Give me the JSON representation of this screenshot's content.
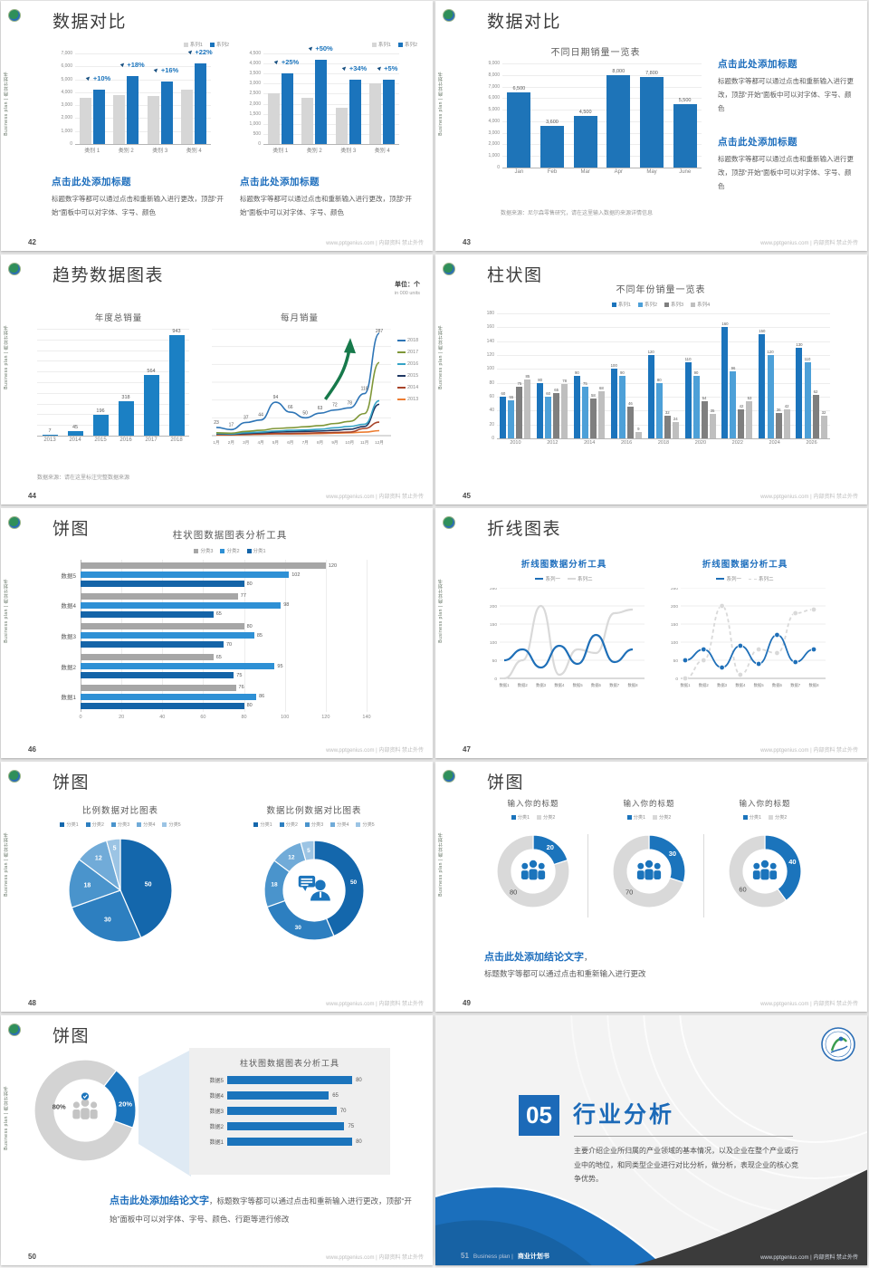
{
  "page": {
    "sidebar": "Business plan | 商业计划书",
    "site": "www.pptgenius.com | 内部资料 禁止外传"
  },
  "slides": [
    {
      "number": "42",
      "title": "数据对比",
      "blocks": [
        {
          "heading": "点击此处添加标题",
          "body": "标题数字等都可以通过点击和重新输入进行更改，顶部“开始”面板中可以对字体、字号、颜色"
        },
        {
          "heading": "点击此处添加标题",
          "body": "标题数字等都可以通过点击和重新输入进行更改，顶部“开始”面板中可以对字体、字号、颜色"
        }
      ],
      "charts": [
        {
          "type": "bar",
          "legend": [
            {
              "label": "系列1",
              "color": "#d6d6d6"
            },
            {
              "label": "系列2",
              "color": "#1b74bc"
            }
          ],
          "categories": [
            "类别 1",
            "类别 2",
            "类别 3",
            "类别 4"
          ],
          "series": [
            {
              "name": "系列1",
              "color": "#d6d6d6",
              "values": [
                3600,
                3800,
                3700,
                4200
              ]
            },
            {
              "name": "系列2",
              "color": "#1b74bc",
              "values": [
                4200,
                5250,
                4800,
                6200
              ]
            }
          ],
          "pct": [
            "+10%",
            "+18%",
            "+16%",
            "+22%"
          ],
          "ylim": [
            0,
            7000
          ],
          "ystep": 1000,
          "yLabels": true,
          "yFmt": true
        },
        {
          "type": "bar",
          "legend": [
            {
              "label": "系列1",
              "color": "#d6d6d6"
            },
            {
              "label": "系列2",
              "color": "#1b74bc"
            }
          ],
          "categories": [
            "类别 1",
            "类别 2",
            "类别 3",
            "类别 4"
          ],
          "series": [
            {
              "name": "系列1",
              "color": "#d6d6d6",
              "values": [
                2500,
                2300,
                1800,
                3000
              ]
            },
            {
              "name": "系列2",
              "color": "#1b74bc",
              "values": [
                3500,
                4200,
                3200,
                3200
              ]
            }
          ],
          "pct": [
            "+25%",
            "+50%",
            "+34%",
            "+5%"
          ],
          "ylim": [
            0,
            4500
          ],
          "ystep": 500,
          "yLabels": true,
          "yFmt": true
        }
      ]
    },
    {
      "number": "43",
      "title": "数据对比",
      "chart": {
        "type": "bar",
        "title": "不同日期销量一览表",
        "categories": [
          "Jan",
          "Feb",
          "Mar",
          "Apr",
          "May",
          "June"
        ],
        "series": [
          {
            "name": "销量",
            "color": "#1e74b8",
            "values": [
              6500,
              3600,
              4500,
              8000,
              7800,
              5500
            ]
          }
        ],
        "ylim": [
          0,
          9000
        ],
        "ystep": 1000,
        "yLabels": true,
        "yFmt": true
      },
      "note": "数据来源：尼尔森零售研究，请在这里输入数据的来源详情信息",
      "blocks": [
        {
          "heading": "点击此处添加标题",
          "body": "标题数字等都可以通过点击和重新输入进行更改，顶部“开始”面板中可以对字体、字号、颜色"
        },
        {
          "heading": "点击此处添加标题",
          "body": "标题数字等都可以通过点击和重新输入进行更改，顶部“开始”面板中可以对字体、字号、颜色"
        }
      ]
    },
    {
      "number": "44",
      "title": "趋势数据图表",
      "unit_cn": "单位：个",
      "unit_en": "in 000 units",
      "bar": {
        "type": "bar",
        "title": "年度总销量",
        "categories": [
          "2013",
          "2014",
          "2015",
          "2016",
          "2017",
          "2018"
        ],
        "series": [
          {
            "name": "年度总销量",
            "color": "#1b80c4",
            "values": [
              7,
              45,
              196,
              318,
              564,
              943
            ]
          }
        ],
        "ylim": [
          0,
          1000
        ],
        "ystep": 100,
        "yLabels": false
      },
      "line": {
        "type": "line",
        "title": "每月销量",
        "categories": [
          "1月",
          "2月",
          "3月",
          "4月",
          "5月",
          "6月",
          "7月",
          "8月",
          "9月",
          "10月",
          "11月",
          "12月"
        ],
        "series": [
          {
            "name": "2018",
            "color": "#2e75b6",
            "values": [
              23,
              17,
              37,
              44,
              94,
              66,
              50,
              63,
              72,
              78,
              118,
              287
            ],
            "showLabels": true
          },
          {
            "name": "2017",
            "color": "#7f9738",
            "values": [
              8,
              7,
              12,
              15,
              20,
              22,
              25,
              28,
              34,
              40,
              62,
              205
            ]
          },
          {
            "name": "2016",
            "color": "#35a3c6",
            "values": [
              6,
              5,
              8,
              10,
              13,
              15,
              16,
              18,
              22,
              26,
              32,
              98
            ]
          },
          {
            "name": "2015",
            "color": "#1f3864",
            "values": [
              5,
              4,
              6,
              8,
              10,
              11,
              12,
              13,
              15,
              18,
              26,
              88
            ]
          },
          {
            "name": "2014",
            "color": "#a8442a",
            "values": [
              3,
              3,
              4,
              5,
              6,
              6,
              7,
              8,
              9,
              10,
              20,
              38
            ]
          },
          {
            "name": "2013",
            "color": "#ed7d31",
            "values": [
              2,
              2,
              3,
              4,
              5,
              5,
              5,
              6,
              7,
              8,
              10,
              14
            ]
          }
        ],
        "ylim": [
          0,
          300
        ],
        "ystep": 50,
        "yLabels": false
      },
      "legend": [
        {
          "label": "2018",
          "color": "#2e75b6",
          "line": true
        },
        {
          "label": "2017",
          "color": "#7f9738",
          "line": true
        },
        {
          "label": "2016",
          "color": "#35a3c6",
          "line": true
        },
        {
          "label": "2015",
          "color": "#1f3864",
          "line": true
        },
        {
          "label": "2014",
          "color": "#a8442a",
          "line": true
        },
        {
          "label": "2013",
          "color": "#ed7d31",
          "line": true
        }
      ],
      "note": "数据来源：请在这里标注完整数据来源"
    },
    {
      "number": "45",
      "title": "柱状图",
      "chart": {
        "type": "bar",
        "title": "不同年份销量一览表",
        "legend": [
          {
            "label": "系列1",
            "color": "#1b74bc"
          },
          {
            "label": "系列2",
            "color": "#4da0d8"
          },
          {
            "label": "系列3",
            "color": "#7f7f7f"
          },
          {
            "label": "系列4",
            "color": "#bfbfbf"
          }
        ],
        "categories": [
          "2010",
          "2012",
          "2014",
          "2016",
          "2018",
          "2020",
          "2022",
          "2024",
          "2026"
        ],
        "series": [
          {
            "name": "系列1",
            "color": "#1b74bc",
            "values": [
              60,
              80,
              90,
              100,
              120,
              110,
              160,
              150,
              130
            ]
          },
          {
            "name": "系列2",
            "color": "#4da0d8",
            "values": [
              55,
              60,
              75,
              90,
              80,
              90,
              96,
              120,
              110
            ]
          },
          {
            "name": "系列3",
            "color": "#7f7f7f",
            "values": [
              75,
              65,
              58,
              46,
              32,
              54,
              42,
              36,
              62
            ]
          },
          {
            "name": "系列4",
            "color": "#bfbfbf",
            "values": [
              85,
              78,
              68,
              9,
              24,
              35,
              53,
              42,
              32
            ]
          }
        ],
        "ylim": [
          0,
          180
        ],
        "ystep": 20,
        "yLabels": true
      }
    },
    {
      "number": "46",
      "title": "饼图",
      "chart": {
        "type": "hbar",
        "title": "柱状图数据图表分析工具",
        "legend": [
          {
            "label": "分类3",
            "color": "#a6a6a6"
          },
          {
            "label": "分类2",
            "color": "#2e90d5"
          },
          {
            "label": "分类1",
            "color": "#1464a8"
          }
        ],
        "categories": [
          "数据5",
          "数据4",
          "数据3",
          "数据2",
          "数据1"
        ],
        "series": [
          {
            "name": "分类3",
            "color": "#a6a6a6",
            "values": [
              120,
              77,
              80,
              65,
              76
            ]
          },
          {
            "name": "分类2",
            "color": "#2e90d5",
            "values": [
              102,
              98,
              85,
              95,
              86
            ]
          },
          {
            "name": "分类1",
            "color": "#1464a8",
            "values": [
              80,
              65,
              70,
              75,
              80
            ]
          }
        ],
        "xlim": [
          0,
          140
        ],
        "xstep": 20
      }
    },
    {
      "number": "47",
      "title": "折线图表",
      "charts": [
        {
          "type": "line",
          "title": "折线图数据分析工具",
          "legend": [
            {
              "label": "系列一",
              "color": "#1e6fb8",
              "line": true
            },
            {
              "label": "系列二",
              "color": "#d9d9d9",
              "line": true
            }
          ],
          "categories": [
            "数据1",
            "数据2",
            "数据3",
            "数据4",
            "数据5",
            "数据6",
            "数据7",
            "数据8"
          ],
          "series": [
            {
              "name": "系列一",
              "color": "#1e6fb8",
              "values": [
                50,
                80,
                30,
                90,
                40,
                120,
                45,
                80
              ]
            },
            {
              "name": "系列二",
              "color": "#d9d9d9",
              "values": [
                0,
                50,
                200,
                10,
                80,
                70,
                180,
                190
              ]
            }
          ],
          "ylim": [
            0,
            250
          ],
          "ystep": 50,
          "yLabels": true
        },
        {
          "type": "line",
          "title": "折线图数据分析工具",
          "legend": [
            {
              "label": "系列一",
              "color": "#1e6fb8",
              "line": true
            },
            {
              "label": "系列二",
              "color": "#d9d9d9",
              "line": true,
              "dash": true
            }
          ],
          "categories": [
            "数据1",
            "数据2",
            "数据3",
            "数据4",
            "数据5",
            "数据6",
            "数据7",
            "数据8"
          ],
          "series": [
            {
              "name": "系列一",
              "color": "#1e6fb8",
              "values": [
                50,
                80,
                30,
                90,
                40,
                120,
                45,
                80
              ]
            },
            {
              "name": "系列二",
              "color": "#d9d9d9",
              "values": [
                0,
                50,
                200,
                10,
                80,
                70,
                180,
                190
              ],
              "dash": true
            }
          ],
          "ylim": [
            0,
            250
          ],
          "ystep": 50,
          "yLabels": true
        }
      ]
    },
    {
      "number": "48",
      "title": "饼图",
      "pies": [
        {
          "title": "比例数据对比图表",
          "legend": [
            {
              "label": "分类1",
              "color": "#1467ac"
            },
            {
              "label": "分类2",
              "color": "#2d7fc0"
            },
            {
              "label": "分类3",
              "color": "#4a94cc"
            },
            {
              "label": "分类4",
              "color": "#71abd8"
            },
            {
              "label": "分类5",
              "color": "#9cc4e4"
            }
          ],
          "slices": [
            {
              "value": 50,
              "color": "#1467ac",
              "label": "50",
              "lr": 0.55
            },
            {
              "value": 30,
              "color": "#2d7fc0",
              "label": "30",
              "lr": 0.62
            },
            {
              "value": 18,
              "color": "#4a94cc",
              "label": "18",
              "lr": 0.65
            },
            {
              "value": 12,
              "color": "#71abd8",
              "label": "12",
              "lr": 0.75
            },
            {
              "value": 5,
              "color": "#9cc4e4",
              "label": "5",
              "lr": 0.82
            }
          ]
        },
        {
          "title": "数据比例数据对比图表",
          "legend": [
            {
              "label": "分类1",
              "color": "#1467ac"
            },
            {
              "label": "分类2",
              "color": "#2d7fc0"
            },
            {
              "label": "分类3",
              "color": "#4a94cc"
            },
            {
              "label": "分类4",
              "color": "#71abd8"
            },
            {
              "label": "分类5",
              "color": "#9cc4e4"
            }
          ],
          "slices": [
            {
              "value": 50,
              "color": "#1467ac",
              "label": "50"
            },
            {
              "value": 30,
              "color": "#2d7fc0",
              "label": "30"
            },
            {
              "value": 18,
              "color": "#4a94cc",
              "label": "18"
            },
            {
              "value": 12,
              "color": "#71abd8",
              "label": "12"
            },
            {
              "value": 5,
              "color": "#9cc4e4",
              "label": "5"
            }
          ]
        }
      ]
    },
    {
      "number": "49",
      "title": "饼图",
      "donuts": [
        {
          "title": "输入你的标题",
          "legend": [
            {
              "label": "分类1",
              "color": "#1b74bc"
            },
            {
              "label": "分类2",
              "color": "#d9d9d9"
            }
          ],
          "slices": [
            {
              "value": 20,
              "color": "#1b74bc",
              "label": "20"
            },
            {
              "value": 80,
              "color": "#d9d9d9"
            }
          ],
          "out": "80"
        },
        {
          "title": "输入你的标题",
          "legend": [
            {
              "label": "分类1",
              "color": "#1b74bc"
            },
            {
              "label": "分类2",
              "color": "#d9d9d9"
            }
          ],
          "slices": [
            {
              "value": 30,
              "color": "#1b74bc",
              "label": "30"
            },
            {
              "value": 70,
              "color": "#d9d9d9"
            }
          ],
          "out": "70"
        },
        {
          "title": "输入你的标题",
          "legend": [
            {
              "label": "分类1",
              "color": "#1b74bc"
            },
            {
              "label": "分类2",
              "color": "#d9d9d9"
            }
          ],
          "slices": [
            {
              "value": 40,
              "color": "#1b74bc",
              "label": "40"
            },
            {
              "value": 60,
              "color": "#d9d9d9"
            }
          ],
          "out": "60"
        }
      ],
      "conclusion_heading": "点击此处添加结论文字",
      "conclusion_comma": "，",
      "conclusion_body": "标题数字等都可以通过点击和重新输入进行更改"
    },
    {
      "number": "50",
      "title": "饼图",
      "donut": {
        "slices": [
          {
            "value": 20,
            "color": "#1b74bc",
            "label": "20%",
            "la": -8
          },
          {
            "value": 80,
            "color": "#d3d3d3"
          }
        ],
        "out": "80%",
        "start": -52
      },
      "panel": {
        "title": "柱状图数据图表分析工具",
        "categories": [
          "数据5",
          "数据4",
          "数据3",
          "数据2",
          "数据1"
        ],
        "values": [
          80,
          65,
          70,
          75,
          80
        ]
      },
      "conclusion_heading": "点击此处添加结论文字",
      "conclusion_body": "，标题数字等都可以通过点击和重新输入进行更改，顶部“开始”面板中可以对字体、字号、颜色、行距等进行修改"
    },
    {
      "number": "51",
      "section_number": "05",
      "title": "行业分析",
      "body": "主要介绍企业所归属的产业领域的基本情况，以及企业在整个产业或行业中的地位，和同类型企业进行对比分析，做分析，表现企业的核心竞争优势。",
      "footer_en": "Business plan |",
      "footer_cn": "商业计划书"
    }
  ]
}
